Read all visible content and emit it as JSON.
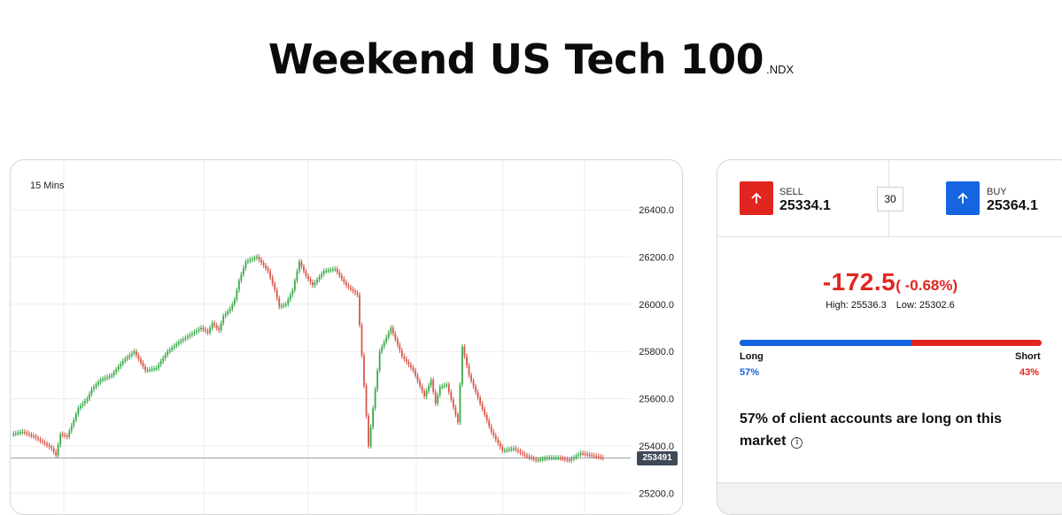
{
  "page": {
    "title": "Weekend US Tech 100",
    "ticker": ".NDX"
  },
  "chart": {
    "timeframe_label": "15 Mins",
    "current_price_tag": "253491"
  },
  "trade_panel": {
    "sell": {
      "label": "SELL",
      "price": "25334.1",
      "icon": "arrow-up-icon"
    },
    "buy": {
      "label": "BUY",
      "price": "25364.1",
      "icon": "arrow-up-icon"
    },
    "spread": "30",
    "change_value": "-172.5",
    "change_percent": "( -0.68%)",
    "high_text": "High: 25536.3",
    "low_text": "Low: 25302.6",
    "long_label": "Long",
    "short_label": "Short",
    "long_pct_text": "57%",
    "short_pct_text": "43%",
    "long_fraction": 0.57,
    "sentiment_text": "57% of client accounts are long on this market",
    "colors": {
      "sell": "#e0261f",
      "buy": "#1565e0"
    }
  },
  "chart_data": {
    "type": "line",
    "title": "",
    "xlabel": "",
    "ylabel": "",
    "ylim": [
      25150,
      26580
    ],
    "yticks": [
      "26400.0",
      "26200.0",
      "26000.0",
      "25800.0",
      "25600.0",
      "25400.0",
      "25200.0"
    ],
    "ytick_values": [
      26400,
      26200,
      26000,
      25800,
      25600,
      25400,
      25200
    ],
    "current_price": 25349,
    "x": [
      0,
      5,
      10,
      15,
      18,
      20,
      22,
      25,
      28,
      30,
      34,
      36,
      40,
      45,
      50,
      55,
      60,
      65,
      70,
      75,
      80,
      85,
      88,
      90,
      93,
      95,
      98,
      100,
      102,
      105,
      110,
      115,
      118,
      120,
      123,
      126,
      129,
      132,
      135,
      140,
      145,
      150,
      155,
      160,
      165,
      170,
      175,
      180,
      185,
      188,
      190,
      192,
      195,
      200,
      202,
      205,
      210,
      215,
      220,
      225,
      230,
      235,
      240,
      245,
      250,
      255,
      260,
      265
    ],
    "series": [
      {
        "values": [
          25450,
          25460,
          25440,
          25410,
          25390,
          25360,
          25450,
          25440,
          25510,
          25560,
          25600,
          25640,
          25680,
          25700,
          25760,
          25800,
          25720,
          25730,
          25800,
          25840,
          25870,
          25900,
          25880,
          25920,
          25890,
          25950,
          25980,
          26020,
          26100,
          26180,
          26200,
          26140,
          26060,
          25990,
          26000,
          26060,
          26180,
          26120,
          26080,
          26140,
          26150,
          26080,
          26040,
          25400,
          25800,
          25900,
          25780,
          25720,
          25610,
          25680,
          25580,
          25650,
          25660,
          25500,
          25820,
          25700,
          25580,
          25460,
          25380,
          25390,
          25360,
          25340,
          25350,
          25350,
          25340,
          25370,
          25360,
          25350
        ]
      }
    ],
    "grid": true
  }
}
